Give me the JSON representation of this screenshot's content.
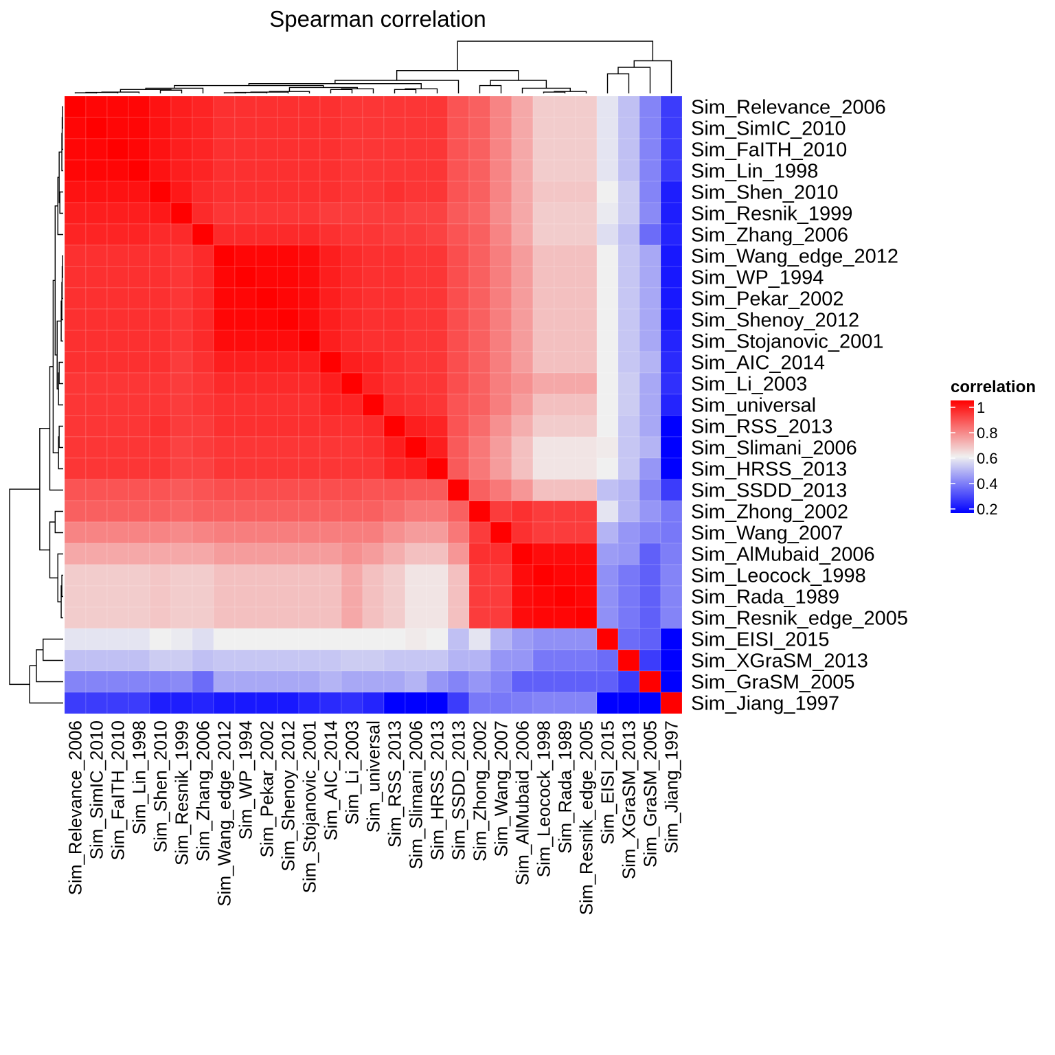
{
  "chart_data": {
    "type": "heatmap",
    "title": "Spearman correlation",
    "rows": [
      "Sim_Relevance_2006",
      "Sim_SimIC_2010",
      "Sim_FaITH_2010",
      "Sim_Lin_1998",
      "Sim_Shen_2010",
      "Sim_Resnik_1999",
      "Sim_Zhang_2006",
      "Sim_Wang_edge_2012",
      "Sim_WP_1994",
      "Sim_Pekar_2002",
      "Sim_Shenoy_2012",
      "Sim_Stojanovic_2001",
      "Sim_AIC_2014",
      "Sim_Li_2003",
      "Sim_universal",
      "Sim_RSS_2013",
      "Sim_Slimani_2006",
      "Sim_HRSS_2013",
      "Sim_SSDD_2013",
      "Sim_Zhong_2002",
      "Sim_Wang_2007",
      "Sim_AlMubaid_2006",
      "Sim_Leocock_1998",
      "Sim_Rada_1989",
      "Sim_Resnik_edge_2005",
      "Sim_EISI_2015",
      "Sim_XGraSM_2013",
      "Sim_GraSM_2005",
      "Sim_Jiang_1997"
    ],
    "columns": [
      "Sim_Relevance_2006",
      "Sim_SimIC_2010",
      "Sim_FaITH_2010",
      "Sim_Lin_1998",
      "Sim_Shen_2010",
      "Sim_Resnik_1999",
      "Sim_Zhang_2006",
      "Sim_Wang_edge_2012",
      "Sim_WP_1994",
      "Sim_Pekar_2002",
      "Sim_Shenoy_2012",
      "Sim_Stojanovic_2001",
      "Sim_AIC_2014",
      "Sim_Li_2003",
      "Sim_universal",
      "Sim_RSS_2013",
      "Sim_Slimani_2006",
      "Sim_HRSS_2013",
      "Sim_SSDD_2013",
      "Sim_Zhong_2002",
      "Sim_Wang_2007",
      "Sim_AlMubaid_2006",
      "Sim_Leocock_1998",
      "Sim_Rada_1989",
      "Sim_Resnik_edge_2005",
      "Sim_EISI_2015",
      "Sim_XGraSM_2013",
      "Sim_GraSM_2005",
      "Sim_Jiang_1997"
    ],
    "values": [
      [
        1.0,
        0.99,
        0.99,
        0.99,
        0.97,
        0.95,
        0.94,
        0.92,
        0.92,
        0.92,
        0.92,
        0.92,
        0.92,
        0.91,
        0.91,
        0.91,
        0.91,
        0.91,
        0.86,
        0.84,
        0.78,
        0.72,
        0.66,
        0.66,
        0.66,
        0.58,
        0.52,
        0.42,
        0.3
      ],
      [
        0.99,
        1.0,
        0.99,
        0.99,
        0.97,
        0.95,
        0.94,
        0.92,
        0.92,
        0.92,
        0.92,
        0.92,
        0.92,
        0.91,
        0.91,
        0.91,
        0.91,
        0.91,
        0.86,
        0.84,
        0.78,
        0.72,
        0.66,
        0.66,
        0.66,
        0.58,
        0.52,
        0.42,
        0.3
      ],
      [
        0.99,
        0.99,
        1.0,
        0.99,
        0.97,
        0.95,
        0.94,
        0.92,
        0.92,
        0.92,
        0.92,
        0.92,
        0.92,
        0.91,
        0.91,
        0.91,
        0.91,
        0.91,
        0.86,
        0.84,
        0.78,
        0.72,
        0.66,
        0.66,
        0.66,
        0.58,
        0.52,
        0.42,
        0.3
      ],
      [
        0.99,
        0.99,
        0.99,
        1.0,
        0.97,
        0.95,
        0.94,
        0.92,
        0.92,
        0.92,
        0.92,
        0.92,
        0.92,
        0.91,
        0.91,
        0.91,
        0.91,
        0.91,
        0.86,
        0.84,
        0.78,
        0.72,
        0.66,
        0.66,
        0.66,
        0.58,
        0.52,
        0.42,
        0.3
      ],
      [
        0.97,
        0.97,
        0.97,
        0.97,
        1.0,
        0.96,
        0.93,
        0.92,
        0.92,
        0.92,
        0.92,
        0.92,
        0.92,
        0.91,
        0.91,
        0.92,
        0.91,
        0.91,
        0.86,
        0.84,
        0.78,
        0.72,
        0.67,
        0.67,
        0.67,
        0.6,
        0.54,
        0.42,
        0.25
      ],
      [
        0.95,
        0.95,
        0.95,
        0.95,
        0.96,
        1.0,
        0.93,
        0.91,
        0.91,
        0.91,
        0.91,
        0.91,
        0.9,
        0.9,
        0.9,
        0.9,
        0.89,
        0.89,
        0.85,
        0.83,
        0.77,
        0.72,
        0.66,
        0.66,
        0.66,
        0.59,
        0.54,
        0.43,
        0.25
      ],
      [
        0.94,
        0.94,
        0.94,
        0.94,
        0.93,
        0.93,
        1.0,
        0.93,
        0.93,
        0.93,
        0.93,
        0.93,
        0.92,
        0.91,
        0.91,
        0.9,
        0.9,
        0.89,
        0.86,
        0.84,
        0.78,
        0.72,
        0.66,
        0.66,
        0.66,
        0.57,
        0.52,
        0.38,
        0.26
      ],
      [
        0.92,
        0.92,
        0.92,
        0.92,
        0.92,
        0.91,
        0.93,
        1.0,
        0.99,
        0.99,
        0.99,
        0.98,
        0.95,
        0.93,
        0.92,
        0.92,
        0.91,
        0.91,
        0.87,
        0.84,
        0.79,
        0.74,
        0.68,
        0.68,
        0.68,
        0.6,
        0.53,
        0.48,
        0.24
      ],
      [
        0.92,
        0.92,
        0.92,
        0.92,
        0.92,
        0.91,
        0.93,
        0.99,
        1.0,
        0.99,
        0.99,
        0.98,
        0.95,
        0.93,
        0.92,
        0.92,
        0.91,
        0.91,
        0.87,
        0.84,
        0.79,
        0.74,
        0.68,
        0.68,
        0.68,
        0.6,
        0.53,
        0.48,
        0.24
      ],
      [
        0.92,
        0.92,
        0.92,
        0.92,
        0.92,
        0.91,
        0.93,
        0.99,
        0.99,
        1.0,
        0.99,
        0.98,
        0.95,
        0.93,
        0.92,
        0.92,
        0.91,
        0.91,
        0.87,
        0.84,
        0.79,
        0.74,
        0.68,
        0.68,
        0.68,
        0.6,
        0.53,
        0.48,
        0.24
      ],
      [
        0.92,
        0.92,
        0.92,
        0.92,
        0.92,
        0.91,
        0.93,
        0.99,
        0.99,
        0.99,
        1.0,
        0.98,
        0.95,
        0.93,
        0.92,
        0.92,
        0.91,
        0.91,
        0.87,
        0.84,
        0.79,
        0.74,
        0.68,
        0.68,
        0.68,
        0.6,
        0.53,
        0.48,
        0.24
      ],
      [
        0.92,
        0.92,
        0.92,
        0.92,
        0.92,
        0.91,
        0.93,
        0.98,
        0.98,
        0.98,
        0.98,
        1.0,
        0.95,
        0.93,
        0.92,
        0.92,
        0.91,
        0.91,
        0.87,
        0.84,
        0.79,
        0.74,
        0.68,
        0.68,
        0.68,
        0.6,
        0.53,
        0.48,
        0.26
      ],
      [
        0.92,
        0.92,
        0.92,
        0.92,
        0.92,
        0.9,
        0.92,
        0.95,
        0.95,
        0.95,
        0.95,
        0.95,
        1.0,
        0.95,
        0.94,
        0.92,
        0.91,
        0.91,
        0.87,
        0.84,
        0.79,
        0.74,
        0.68,
        0.68,
        0.68,
        0.6,
        0.53,
        0.5,
        0.27
      ],
      [
        0.91,
        0.91,
        0.91,
        0.91,
        0.91,
        0.9,
        0.91,
        0.93,
        0.93,
        0.93,
        0.93,
        0.93,
        0.95,
        1.0,
        0.94,
        0.92,
        0.91,
        0.91,
        0.87,
        0.84,
        0.79,
        0.76,
        0.72,
        0.72,
        0.72,
        0.6,
        0.54,
        0.48,
        0.28
      ],
      [
        0.91,
        0.91,
        0.91,
        0.91,
        0.91,
        0.9,
        0.91,
        0.92,
        0.92,
        0.92,
        0.92,
        0.92,
        0.94,
        0.94,
        1.0,
        0.93,
        0.92,
        0.91,
        0.86,
        0.84,
        0.79,
        0.74,
        0.68,
        0.68,
        0.68,
        0.6,
        0.54,
        0.48,
        0.26
      ],
      [
        0.91,
        0.91,
        0.91,
        0.91,
        0.92,
        0.9,
        0.9,
        0.92,
        0.92,
        0.92,
        0.92,
        0.92,
        0.92,
        0.92,
        0.93,
        1.0,
        0.95,
        0.94,
        0.86,
        0.82,
        0.76,
        0.71,
        0.66,
        0.66,
        0.66,
        0.6,
        0.53,
        0.48,
        0.18
      ],
      [
        0.91,
        0.91,
        0.91,
        0.91,
        0.91,
        0.89,
        0.9,
        0.91,
        0.91,
        0.91,
        0.91,
        0.91,
        0.91,
        0.91,
        0.92,
        0.95,
        1.0,
        0.95,
        0.85,
        0.8,
        0.74,
        0.68,
        0.62,
        0.62,
        0.62,
        0.61,
        0.53,
        0.5,
        0.18
      ],
      [
        0.91,
        0.91,
        0.91,
        0.91,
        0.91,
        0.89,
        0.89,
        0.91,
        0.91,
        0.91,
        0.91,
        0.91,
        0.91,
        0.91,
        0.91,
        0.94,
        0.95,
        1.0,
        0.85,
        0.8,
        0.74,
        0.68,
        0.62,
        0.62,
        0.62,
        0.6,
        0.53,
        0.45,
        0.18
      ],
      [
        0.86,
        0.86,
        0.86,
        0.86,
        0.86,
        0.85,
        0.86,
        0.87,
        0.87,
        0.87,
        0.87,
        0.87,
        0.87,
        0.87,
        0.86,
        0.86,
        0.85,
        0.85,
        1.0,
        0.84,
        0.8,
        0.75,
        0.68,
        0.68,
        0.68,
        0.52,
        0.5,
        0.42,
        0.3
      ],
      [
        0.84,
        0.84,
        0.84,
        0.84,
        0.84,
        0.83,
        0.84,
        0.84,
        0.84,
        0.84,
        0.84,
        0.84,
        0.84,
        0.84,
        0.84,
        0.82,
        0.8,
        0.8,
        0.84,
        1.0,
        0.9,
        0.92,
        0.9,
        0.9,
        0.9,
        0.58,
        0.5,
        0.45,
        0.4
      ],
      [
        0.78,
        0.78,
        0.78,
        0.78,
        0.78,
        0.77,
        0.78,
        0.79,
        0.79,
        0.79,
        0.79,
        0.79,
        0.79,
        0.79,
        0.79,
        0.76,
        0.74,
        0.74,
        0.8,
        0.9,
        1.0,
        0.92,
        0.9,
        0.9,
        0.9,
        0.5,
        0.45,
        0.42,
        0.4
      ],
      [
        0.72,
        0.72,
        0.72,
        0.72,
        0.72,
        0.72,
        0.72,
        0.74,
        0.74,
        0.74,
        0.74,
        0.74,
        0.74,
        0.76,
        0.74,
        0.71,
        0.68,
        0.68,
        0.75,
        0.92,
        0.92,
        1.0,
        0.98,
        0.98,
        0.98,
        0.46,
        0.45,
        0.36,
        0.41
      ],
      [
        0.66,
        0.66,
        0.66,
        0.66,
        0.67,
        0.66,
        0.66,
        0.68,
        0.68,
        0.68,
        0.68,
        0.68,
        0.68,
        0.72,
        0.68,
        0.66,
        0.62,
        0.62,
        0.68,
        0.9,
        0.9,
        0.98,
        1.0,
        0.99,
        0.99,
        0.44,
        0.4,
        0.36,
        0.42
      ],
      [
        0.66,
        0.66,
        0.66,
        0.66,
        0.67,
        0.66,
        0.66,
        0.68,
        0.68,
        0.68,
        0.68,
        0.68,
        0.68,
        0.72,
        0.68,
        0.66,
        0.62,
        0.62,
        0.68,
        0.9,
        0.9,
        0.98,
        0.99,
        1.0,
        0.99,
        0.44,
        0.4,
        0.36,
        0.42
      ],
      [
        0.66,
        0.66,
        0.66,
        0.66,
        0.67,
        0.66,
        0.66,
        0.68,
        0.68,
        0.68,
        0.68,
        0.68,
        0.68,
        0.72,
        0.68,
        0.66,
        0.62,
        0.62,
        0.68,
        0.9,
        0.9,
        0.98,
        0.99,
        0.99,
        1.0,
        0.44,
        0.4,
        0.36,
        0.42
      ],
      [
        0.58,
        0.58,
        0.58,
        0.58,
        0.6,
        0.59,
        0.57,
        0.6,
        0.6,
        0.6,
        0.6,
        0.6,
        0.6,
        0.6,
        0.6,
        0.6,
        0.61,
        0.6,
        0.52,
        0.58,
        0.5,
        0.46,
        0.44,
        0.44,
        0.44,
        1.0,
        0.38,
        0.36,
        0.18
      ],
      [
        0.52,
        0.52,
        0.52,
        0.52,
        0.54,
        0.54,
        0.52,
        0.53,
        0.53,
        0.53,
        0.53,
        0.53,
        0.53,
        0.54,
        0.54,
        0.53,
        0.53,
        0.53,
        0.5,
        0.5,
        0.45,
        0.45,
        0.4,
        0.4,
        0.4,
        0.38,
        1.0,
        0.3,
        0.18
      ],
      [
        0.42,
        0.42,
        0.42,
        0.42,
        0.42,
        0.43,
        0.38,
        0.48,
        0.48,
        0.48,
        0.48,
        0.48,
        0.5,
        0.48,
        0.48,
        0.48,
        0.5,
        0.45,
        0.42,
        0.45,
        0.42,
        0.36,
        0.36,
        0.36,
        0.36,
        0.36,
        0.3,
        1.0,
        0.18
      ],
      [
        0.3,
        0.3,
        0.3,
        0.3,
        0.25,
        0.25,
        0.26,
        0.24,
        0.24,
        0.24,
        0.24,
        0.26,
        0.27,
        0.28,
        0.26,
        0.18,
        0.18,
        0.18,
        0.3,
        0.4,
        0.4,
        0.41,
        0.42,
        0.42,
        0.42,
        0.18,
        0.18,
        0.18,
        1.0
      ]
    ],
    "legend": {
      "title": "correlation",
      "ticks": [
        1,
        0.8,
        0.6,
        0.4,
        0.2
      ],
      "tick_labels": [
        "1",
        "0.8",
        "0.6",
        "0.4",
        "0.2"
      ],
      "range": [
        0.2,
        1.0
      ],
      "low_color": "#0000ff",
      "mid_color": "#f0f0f0",
      "high_color": "#ff0000",
      "mid_value": 0.6,
      "placement": "right"
    },
    "dendrogram": {
      "rows": "left",
      "columns": "top"
    }
  }
}
